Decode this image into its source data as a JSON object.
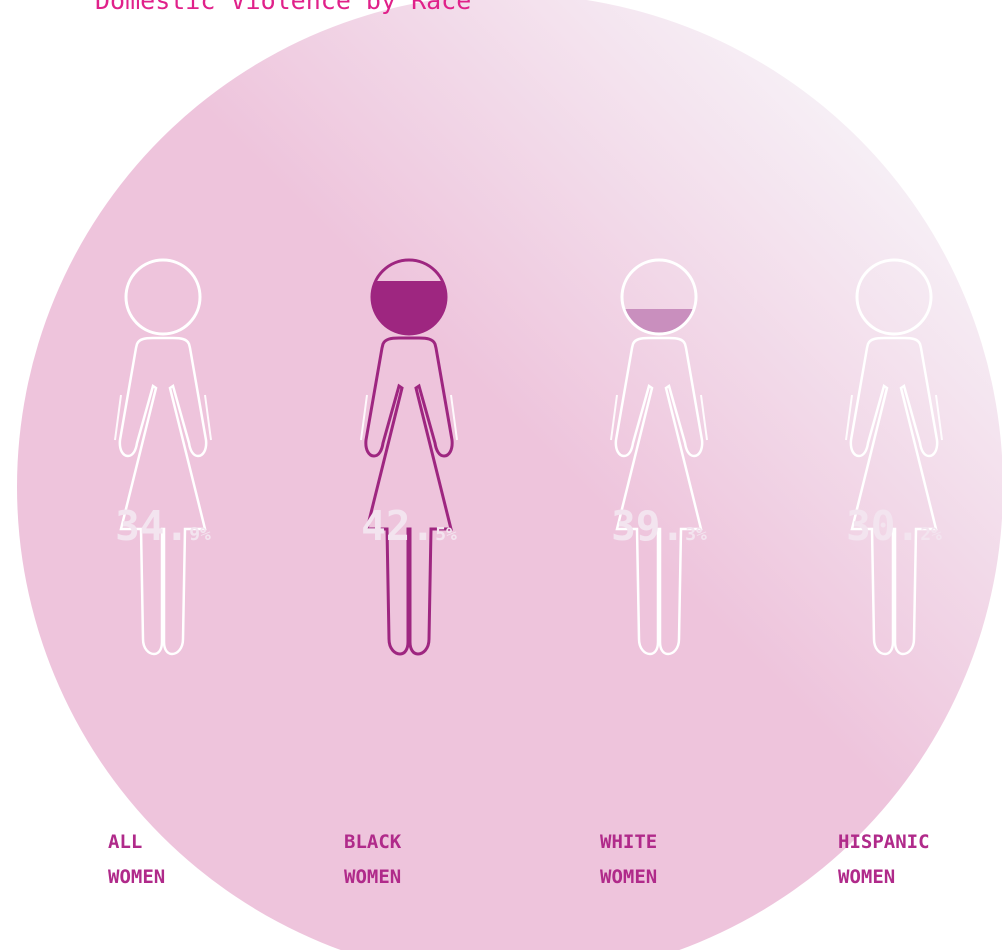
{
  "title": "Domestic Violence by Race",
  "colors": {
    "figure_light": "#c98fbe",
    "figure_all": "#c47cac",
    "figure_highlight": "#9e2680",
    "outline": "#ffffff",
    "label": "#b02a8a",
    "circle_light": "#f6eef5",
    "circle_dark": "#eec4dc"
  },
  "icon": "woman-figure-icon",
  "chart_data": {
    "type": "bar",
    "title": "Domestic Violence by Race",
    "categories": [
      "ALL WOMEN",
      "BLACK WOMEN",
      "WHITE WOMEN",
      "HISPANIC WOMEN"
    ],
    "values": [
      34.9,
      42.5,
      39.3,
      30.2
    ],
    "unit": "%",
    "highlight": "BLACK WOMEN",
    "groups": [
      {
        "line1": "ALL",
        "line2": "WOMEN",
        "pct_main": "34.",
        "pct_dec": "9%",
        "value": 34.9
      },
      {
        "line1": "BLACK",
        "line2": "WOMEN",
        "pct_main": "42.",
        "pct_dec": "5%",
        "value": 42.5
      },
      {
        "line1": "WHITE",
        "line2": "WOMEN",
        "pct_main": "39.",
        "pct_dec": "3%",
        "value": 39.3
      },
      {
        "line1": "HISPANIC",
        "line2": "WOMEN",
        "pct_main": "30.",
        "pct_dec": "2%",
        "value": 30.2
      }
    ]
  }
}
